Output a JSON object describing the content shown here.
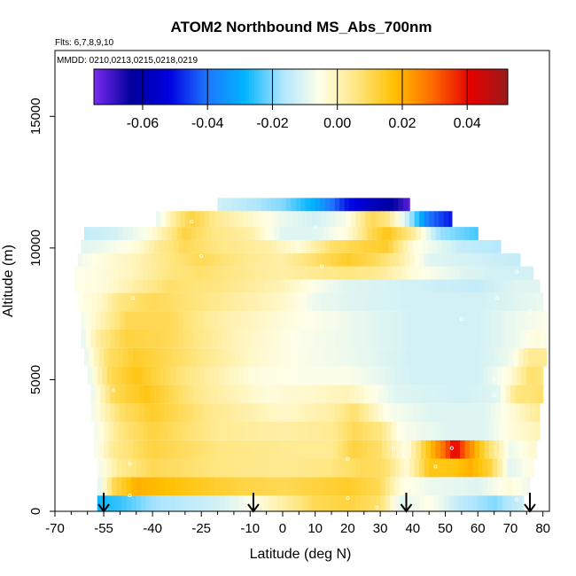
{
  "chart_data": {
    "type": "heatmap",
    "title": "ATOM2 Northbound MS_Abs_700nm",
    "subtitle_flights": "Flts: 6,7,8,9,10",
    "subtitle_dates": "MMDD: 0210,0213,0215,0218,0219",
    "xlabel": "Latitude (deg N)",
    "ylabel": "Altitude (m)",
    "xlim": [
      -70,
      82
    ],
    "ylim": [
      0,
      17500
    ],
    "x_tick_labels": [
      "-70",
      "-55",
      "-40",
      "-25",
      "-10",
      "0",
      "10",
      "20",
      "30",
      "40",
      "50",
      "60",
      "70",
      "80"
    ],
    "x_tick_values": [
      -70,
      -55,
      -40,
      -25,
      -10,
      0,
      10,
      20,
      30,
      40,
      50,
      60,
      70,
      80
    ],
    "y_tick_labels": [
      "0",
      "5000",
      "10000",
      "15000"
    ],
    "y_tick_values": [
      0,
      5000,
      10000,
      15000
    ],
    "colorbar": {
      "range": [
        -0.075,
        0.0525
      ],
      "tick_labels": [
        "-0.06",
        "-0.04",
        "-0.02",
        "0.00",
        "0.02",
        "0.04"
      ],
      "tick_values": [
        -0.06,
        -0.04,
        -0.02,
        0.0,
        0.02,
        0.04
      ],
      "colors": [
        "#7b2cf0",
        "#00009c",
        "#0000e0",
        "#1f75ff",
        "#00b4ff",
        "#aee6ff",
        "#ffffe8",
        "#ffe680",
        "#ffc000",
        "#ff6a00",
        "#e60000",
        "#9a1a1a"
      ]
    },
    "arrow_latitudes": [
      -55,
      -9,
      38,
      76
    ],
    "altitude_levels": [
      600,
      1300,
      2000,
      2700,
      3400,
      4100,
      4800,
      5500,
      6200,
      6900,
      7600,
      8300,
      8800,
      9300,
      9800,
      10300,
      10800,
      11400,
      11900
    ],
    "field_rows": [
      {
        "alt": 250,
        "lat_min": -57,
        "lat_max": 74,
        "lats": [
          -57,
          -50,
          -40,
          -20,
          -10,
          10,
          20,
          30,
          36,
          45,
          55,
          65,
          74
        ],
        "vals": [
          -0.028,
          -0.025,
          -0.018,
          -0.012,
          -0.006,
          0.01,
          0.012,
          0.008,
          -0.01,
          -0.005,
          -0.015,
          -0.02,
          -0.012
        ]
      },
      {
        "alt": 800,
        "lat_min": -57,
        "lat_max": 76,
        "lats": [
          -57,
          -52,
          -45,
          -30,
          -15,
          0,
          10,
          20,
          30,
          36,
          45,
          60,
          70,
          76
        ],
        "vals": [
          -0.012,
          0.01,
          0.02,
          0.016,
          0.012,
          0.01,
          0.012,
          0.014,
          0.01,
          -0.004,
          -0.008,
          -0.01,
          -0.004,
          -0.008
        ]
      },
      {
        "alt": 1400,
        "lat_min": -57,
        "lat_max": 77,
        "lats": [
          -57,
          -50,
          -40,
          -20,
          0,
          15,
          25,
          32,
          38,
          45,
          52,
          58,
          64,
          70,
          77
        ],
        "vals": [
          -0.008,
          0.004,
          0.01,
          0.006,
          0.004,
          0.006,
          0.01,
          0.008,
          -0.004,
          0.016,
          0.016,
          0.02,
          0.012,
          -0.01,
          -0.004
        ]
      },
      {
        "alt": 2000,
        "lat_min": -58,
        "lat_max": 78,
        "lats": [
          -58,
          -52,
          -40,
          -20,
          0,
          15,
          22,
          30,
          38,
          44,
          50,
          53,
          56,
          62,
          70,
          78
        ],
        "vals": [
          -0.008,
          0.004,
          0.012,
          0.006,
          0.004,
          0.004,
          0.012,
          0.008,
          -0.006,
          0.014,
          0.03,
          0.042,
          0.03,
          0.012,
          -0.008,
          -0.002
        ]
      },
      {
        "alt": 2600,
        "lat_min": -58,
        "lat_max": 79,
        "lats": [
          -58,
          -50,
          -40,
          -20,
          0,
          15,
          22,
          30,
          36,
          50,
          62,
          70,
          79
        ],
        "vals": [
          -0.008,
          0.006,
          0.012,
          0.004,
          0.002,
          0.004,
          0.01,
          0.006,
          -0.006,
          -0.01,
          -0.01,
          -0.004,
          0.0
        ]
      },
      {
        "alt": 3300,
        "lat_min": -59,
        "lat_max": 79,
        "lats": [
          -59,
          -50,
          -40,
          -20,
          0,
          15,
          22,
          32,
          45,
          62,
          70,
          79
        ],
        "vals": [
          -0.008,
          0.008,
          0.014,
          0.004,
          -0.002,
          0.002,
          0.008,
          -0.006,
          -0.01,
          -0.01,
          -0.004,
          0.004
        ]
      },
      {
        "alt": 4100,
        "lat_min": -59,
        "lat_max": 80,
        "lats": [
          -59,
          -52,
          -42,
          -25,
          -5,
          10,
          20,
          35,
          55,
          66,
          72,
          80
        ],
        "vals": [
          -0.01,
          0.01,
          0.016,
          0.004,
          -0.004,
          -0.002,
          0.0,
          -0.01,
          -0.012,
          -0.01,
          0.006,
          0.008
        ]
      },
      {
        "alt": 4900,
        "lat_min": -60,
        "lat_max": 80,
        "lats": [
          -60,
          -53,
          -45,
          -30,
          -10,
          5,
          20,
          40,
          60,
          70,
          76,
          80
        ],
        "vals": [
          -0.01,
          0.01,
          0.016,
          0.006,
          -0.004,
          -0.006,
          -0.006,
          -0.012,
          -0.012,
          -0.004,
          0.008,
          0.006
        ]
      },
      {
        "alt": 5700,
        "lat_min": -61,
        "lat_max": 81,
        "lats": [
          -61,
          -54,
          -45,
          -30,
          -10,
          5,
          20,
          40,
          60,
          70,
          76,
          81
        ],
        "vals": [
          -0.01,
          0.008,
          0.014,
          0.008,
          -0.002,
          -0.006,
          -0.008,
          -0.012,
          -0.012,
          -0.008,
          0.004,
          0.004
        ]
      },
      {
        "alt": 6400,
        "lat_min": -62,
        "lat_max": 81,
        "lats": [
          -62,
          -56,
          -48,
          -35,
          -15,
          5,
          20,
          40,
          60,
          72,
          78,
          81
        ],
        "vals": [
          -0.01,
          0.004,
          0.012,
          0.01,
          0.0,
          -0.006,
          -0.008,
          -0.012,
          -0.012,
          -0.008,
          -0.004,
          -0.006
        ]
      },
      {
        "alt": 7100,
        "lat_min": -62,
        "lat_max": 81,
        "lats": [
          -62,
          -56,
          -48,
          -35,
          -20,
          0,
          20,
          40,
          60,
          72,
          81
        ],
        "vals": [
          -0.008,
          0.0,
          0.01,
          0.01,
          0.002,
          -0.004,
          -0.008,
          -0.012,
          -0.012,
          -0.008,
          -0.006
        ]
      },
      {
        "alt": 7800,
        "lat_min": -63,
        "lat_max": 80,
        "lats": [
          -63,
          -56,
          -50,
          -40,
          -25,
          0,
          10,
          20,
          40,
          60,
          72,
          80
        ],
        "vals": [
          -0.006,
          -0.002,
          0.006,
          0.01,
          0.006,
          -0.002,
          -0.008,
          -0.01,
          -0.012,
          -0.012,
          -0.01,
          -0.008
        ]
      },
      {
        "alt": 8500,
        "lat_min": -64,
        "lat_max": 79,
        "lats": [
          -64,
          -55,
          -45,
          -35,
          -20,
          0,
          10,
          20,
          40,
          60,
          72,
          79
        ],
        "vals": [
          -0.006,
          -0.004,
          0.002,
          0.008,
          0.006,
          0.0,
          -0.006,
          -0.01,
          -0.012,
          -0.014,
          -0.01,
          -0.01
        ]
      },
      {
        "alt": 9000,
        "lat_min": -64,
        "lat_max": 77,
        "lats": [
          -64,
          -55,
          -45,
          -35,
          -25,
          -10,
          0,
          10,
          20,
          30,
          40,
          55,
          65,
          77
        ],
        "vals": [
          -0.006,
          -0.004,
          0.0,
          0.006,
          0.008,
          0.004,
          0.002,
          0.004,
          0.006,
          0.004,
          -0.004,
          -0.01,
          -0.012,
          -0.012
        ]
      },
      {
        "alt": 9500,
        "lat_min": -63,
        "lat_max": 73,
        "lats": [
          -63,
          -55,
          -45,
          -35,
          -25,
          -10,
          0,
          10,
          20,
          28,
          35,
          45,
          60,
          73
        ],
        "vals": [
          -0.008,
          -0.004,
          0.0,
          0.006,
          0.01,
          0.004,
          0.002,
          0.008,
          0.014,
          0.01,
          0.004,
          -0.01,
          -0.012,
          -0.014
        ]
      },
      {
        "alt": 10000,
        "lat_min": -62,
        "lat_max": 67,
        "lats": [
          -62,
          -55,
          -45,
          -38,
          -30,
          -20,
          -5,
          5,
          15,
          25,
          32,
          40,
          55,
          67
        ],
        "vals": [
          -0.01,
          -0.008,
          -0.004,
          0.004,
          0.01,
          0.006,
          0.002,
          -0.004,
          0.008,
          0.012,
          0.014,
          -0.004,
          -0.014,
          -0.016
        ]
      },
      {
        "alt": 10600,
        "lat_min": -61,
        "lat_max": 60,
        "lats": [
          -61,
          -52,
          -42,
          -35,
          -30,
          -22,
          -10,
          0,
          10,
          20,
          27,
          32,
          40,
          48,
          60
        ],
        "vals": [
          -0.014,
          -0.012,
          -0.006,
          0.004,
          0.012,
          0.006,
          0.002,
          -0.01,
          -0.01,
          -0.004,
          0.01,
          0.016,
          0.004,
          -0.018,
          -0.024
        ]
      },
      {
        "alt": 11200,
        "lat_min": -39,
        "lat_max": 52,
        "lats": [
          -39,
          -33,
          -28,
          -20,
          -10,
          0,
          10,
          20,
          27,
          32,
          38,
          45,
          52
        ],
        "vals": [
          -0.01,
          0.004,
          0.012,
          0.004,
          -0.002,
          -0.008,
          -0.012,
          -0.006,
          0.01,
          0.006,
          -0.012,
          -0.04,
          -0.05
        ]
      },
      {
        "alt": 11800,
        "lat_min": -20,
        "lat_max": 39,
        "lats": [
          -20,
          -10,
          0,
          10,
          20,
          28,
          33,
          39
        ],
        "vals": [
          -0.012,
          -0.016,
          -0.02,
          -0.03,
          -0.05,
          -0.058,
          -0.062,
          -0.072
        ]
      }
    ],
    "sample_points": [
      {
        "lat": -47,
        "alt": 600
      },
      {
        "lat": -47,
        "alt": 1800
      },
      {
        "lat": -52,
        "alt": 4600
      },
      {
        "lat": -46,
        "alt": 8100
      },
      {
        "lat": -28,
        "alt": 11000
      },
      {
        "lat": -25,
        "alt": 9700
      },
      {
        "lat": 6,
        "alt": 8700
      },
      {
        "lat": 10,
        "alt": 10800
      },
      {
        "lat": 12,
        "alt": 9300
      },
      {
        "lat": 20,
        "alt": 2000
      },
      {
        "lat": 20,
        "alt": 500
      },
      {
        "lat": 29,
        "alt": 150
      },
      {
        "lat": 34,
        "alt": 2400
      },
      {
        "lat": 47,
        "alt": 1700
      },
      {
        "lat": 52,
        "alt": 2400
      },
      {
        "lat": 55,
        "alt": 7300
      },
      {
        "lat": 65,
        "alt": 4400
      },
      {
        "lat": 65,
        "alt": 5000
      },
      {
        "lat": 66,
        "alt": 8100
      },
      {
        "lat": 71,
        "alt": 1200
      },
      {
        "lat": 72,
        "alt": 9100
      },
      {
        "lat": 76,
        "alt": 7600
      },
      {
        "lat": 72,
        "alt": 450
      }
    ],
    "grid": false,
    "legend": "colorbar inside plot, top"
  }
}
